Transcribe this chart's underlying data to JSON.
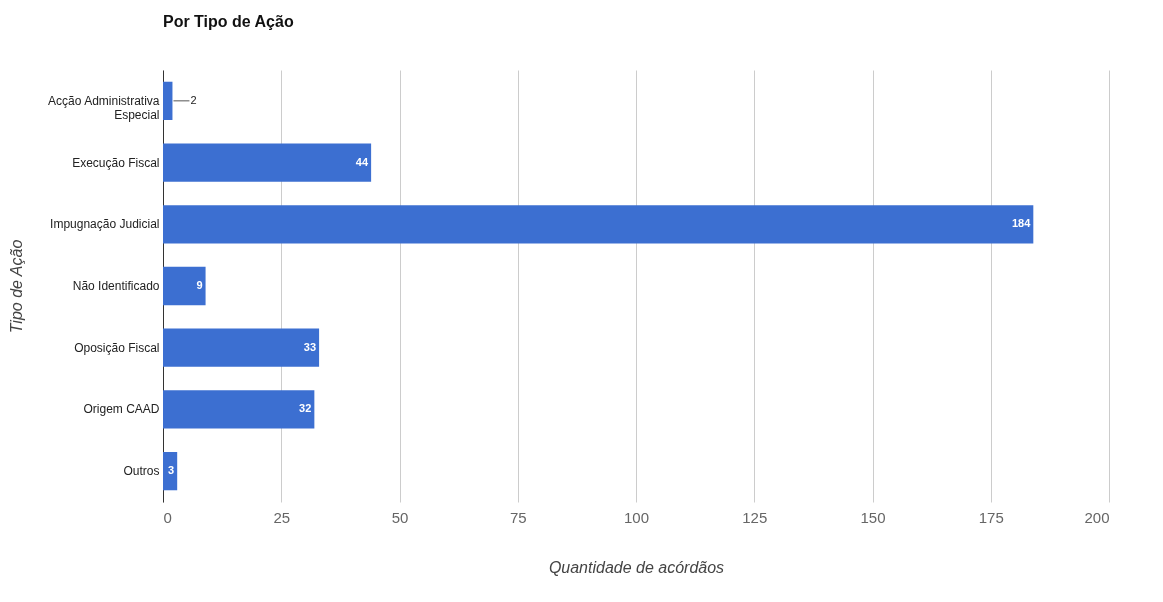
{
  "chart_data": {
    "type": "bar",
    "orientation": "horizontal",
    "title": "Por Tipo de Ação",
    "xlabel": "Quantidade de acórdãos",
    "ylabel": "Tipo de Ação",
    "categories": [
      "Acção Administrativa Especial",
      "Execução Fiscal",
      "Impugnação Judicial",
      "Não Identificado",
      "Oposição Fiscal",
      "Origem CAAD",
      "Outros"
    ],
    "values": [
      2,
      44,
      184,
      9,
      33,
      32,
      3
    ],
    "color": "#3c6fd1",
    "xlim": [
      0,
      200
    ],
    "xticks": [
      0,
      25,
      50,
      75,
      100,
      125,
      150,
      175,
      200
    ],
    "grid": "x",
    "data_labels": true
  }
}
